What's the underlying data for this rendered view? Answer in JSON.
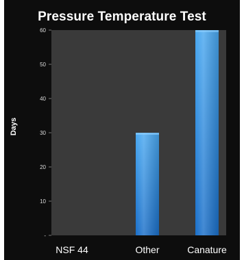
{
  "chart_data": {
    "type": "bar",
    "title": "Pressure Temperature Test",
    "ylabel": "Days",
    "xlabel": "",
    "categories": [
      "NSF 44",
      "Other",
      "Canature"
    ],
    "values": [
      0,
      30,
      60
    ],
    "ylim": [
      0,
      60
    ],
    "yticks": [
      0,
      10,
      20,
      30,
      40,
      50,
      60
    ],
    "ytick_labels": [
      "-",
      "10",
      "20",
      "30",
      "40",
      "50",
      "60"
    ],
    "grid": false,
    "legend": "none",
    "colors": {
      "background": "#0d0d0d",
      "plot_area": "#3a3a3a",
      "bar_top": "#4aa8f0",
      "bar_bottom": "#1a6fc9",
      "text": "#ffffff"
    }
  }
}
